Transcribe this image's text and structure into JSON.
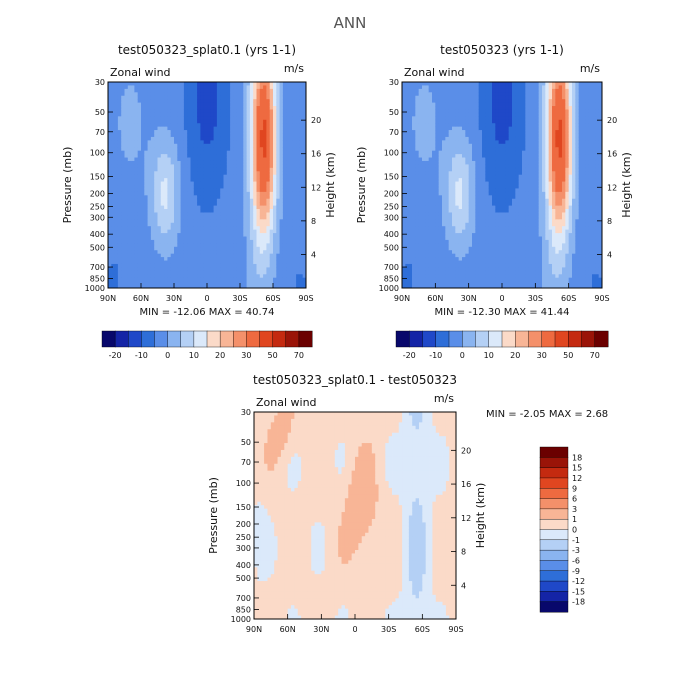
{
  "figure_title": "ANN",
  "colors": {
    "cool": [
      "#08086b",
      "#1424a6",
      "#1f48c8",
      "#2e6ed8",
      "#5a8ee8",
      "#8ab4f0",
      "#b4d0f5",
      "#dbe9fa"
    ],
    "warm": [
      "#fbdac8",
      "#f8b596",
      "#f4906a",
      "#ee6a40",
      "#e04620",
      "#c42a10",
      "#9a1408",
      "#6b0000"
    ]
  },
  "chart_data": [
    {
      "type": "heatmap",
      "title": "test050323_splat0.1 (yrs 1-1)",
      "variable_label": "Zonal wind",
      "units_label": "m/s",
      "ylabel": "Pressure (mb)",
      "ylabel_right": "Height (km)",
      "x_ticks": [
        "90N",
        "60N",
        "30N",
        "0",
        "30S",
        "60S",
        "90S"
      ],
      "y_ticks": [
        "30",
        "50",
        "70",
        "100",
        "150",
        "200",
        "250",
        "300",
        "400",
        "500",
        "700",
        "850",
        "1000"
      ],
      "y_ticks_right": [
        "20",
        "16",
        "12",
        "8",
        "4"
      ],
      "stats_text": "MIN = -12.06   MAX = 40.74",
      "min": -12.06,
      "max": 40.74,
      "colorbar_labels": [
        "-20",
        "-10",
        "0",
        "10",
        "20",
        "30",
        "50",
        "70"
      ]
    },
    {
      "type": "heatmap",
      "title": "test050323 (yrs 1-1)",
      "variable_label": "Zonal wind",
      "units_label": "m/s",
      "ylabel": "Pressure (mb)",
      "ylabel_right": "Height (km)",
      "x_ticks": [
        "90N",
        "60N",
        "30N",
        "0",
        "30S",
        "60S",
        "90S"
      ],
      "y_ticks": [
        "30",
        "50",
        "70",
        "100",
        "150",
        "200",
        "250",
        "300",
        "400",
        "500",
        "700",
        "850",
        "1000"
      ],
      "y_ticks_right": [
        "20",
        "16",
        "12",
        "8",
        "4"
      ],
      "stats_text": "MIN = -12.30   MAX = 41.44",
      "min": -12.3,
      "max": 41.44,
      "colorbar_labels": [
        "-20",
        "-10",
        "0",
        "10",
        "20",
        "30",
        "50",
        "70"
      ]
    },
    {
      "type": "heatmap",
      "title": "test050323_splat0.1 - test050323",
      "variable_label": "Zonal wind",
      "units_label": "m/s",
      "ylabel": "Pressure (mb)",
      "ylabel_right": "Height (km)",
      "x_ticks": [
        "90N",
        "60N",
        "30N",
        "0",
        "30S",
        "60S",
        "90S"
      ],
      "y_ticks": [
        "30",
        "50",
        "70",
        "100",
        "150",
        "200",
        "250",
        "300",
        "400",
        "500",
        "700",
        "850",
        "1000"
      ],
      "y_ticks_right": [
        "20",
        "16",
        "12",
        "8",
        "4"
      ],
      "stats_text": "MIN =   -2.05   MAX =   2.68",
      "min": -2.05,
      "max": 2.68,
      "colorbar_labels": [
        "18",
        "15",
        "12",
        "9",
        "6",
        "3",
        "1",
        "0",
        "-1",
        "-3",
        "-6",
        "-9",
        "-12",
        "-15",
        "-18"
      ]
    }
  ]
}
